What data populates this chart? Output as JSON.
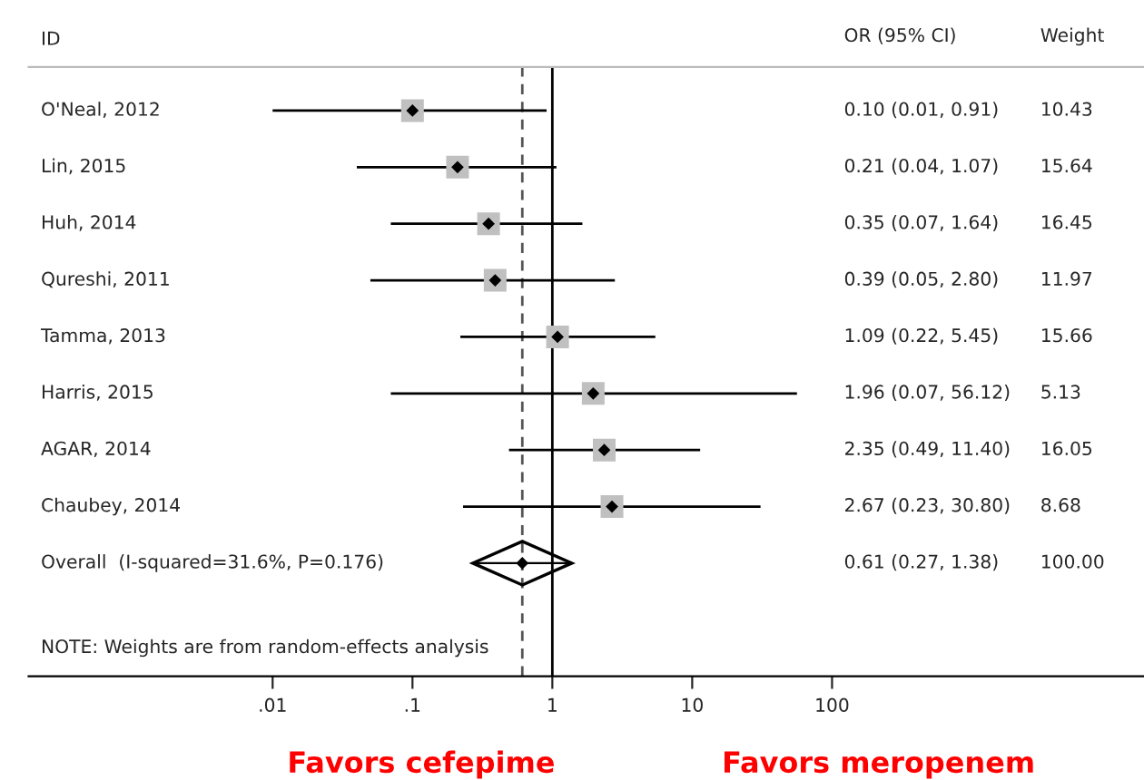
{
  "chart_data": {
    "type": "scatter",
    "orientation": "horizontal",
    "log": "x",
    "ylabel": "ID",
    "categories": [
      "O'Neal, 2012",
      "Lin, 2015",
      "Huh, 2014",
      "Qureshi, 2011",
      "Tamma, 2013",
      "Harris, 2015",
      "AGAR, 2014",
      "Chaubey, 2014",
      "Overall  (I-squared=31.6%, P=0.176)"
    ],
    "series": [
      {
        "color": "#c0c0c0",
        "marker": "square",
        "values": [
          0.1,
          0.21,
          0.35,
          0.39,
          1.09,
          1.96,
          2.35,
          2.67,
          null
        ],
        "errors": [
          [
            0.01,
            0.91
          ],
          [
            0.04,
            1.07
          ],
          [
            0.07,
            1.64
          ],
          [
            0.05,
            2.8
          ],
          [
            0.22,
            5.45
          ],
          [
            0.07,
            56.12
          ],
          [
            0.49,
            11.4
          ],
          [
            0.23,
            30.8
          ],
          null
        ]
      },
      {
        "color": "#000000",
        "marker": "diamond",
        "values": [
          null,
          null,
          null,
          null,
          null,
          null,
          null,
          null,
          0.61
        ],
        "errors": [
          null,
          null,
          null,
          null,
          null,
          null,
          null,
          null,
          [
            0.27,
            1.38
          ]
        ]
      }
    ],
    "ref_lines": [
      {
        "axis": "x",
        "value": 1,
        "color": "#000000",
        "line_style": "solid"
      },
      {
        "axis": "x",
        "value": 0.61,
        "color": "#555555",
        "line_style": "dashed"
      }
    ],
    "xlim": [
      0.00018,
      17000
    ],
    "xticks": [
      {
        "value": 0.01,
        "label": ".01"
      },
      {
        "value": 0.1,
        "label": ".1"
      },
      1,
      10,
      100
    ],
    "annotations": [
      "OR (95% CI)",
      "Weight",
      "0.10 (0.01, 0.91)",
      "0.21 (0.04, 1.07)",
      "0.35 (0.07, 1.64)",
      "0.39 (0.05, 2.80)",
      "1.09 (0.22, 5.45)",
      "1.96 (0.07, 56.12)",
      "2.35 (0.49, 11.40)",
      "2.67 (0.23, 30.80)",
      "0.61 (0.27, 1.38)",
      "10.43",
      "15.64",
      "16.45",
      "11.97",
      "15.66",
      "5.13",
      "16.05",
      "8.68",
      "100.00",
      "NOTE: Weights are from random-effects analysis",
      "Favors cefepime",
      "Favors meropenem"
    ]
  }
}
